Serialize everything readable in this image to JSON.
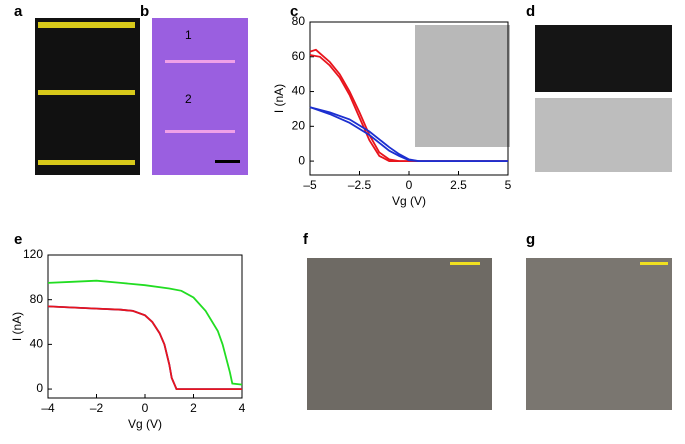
{
  "panel_labels": [
    "a",
    "b",
    "c",
    "d",
    "e",
    "f",
    "g"
  ],
  "image_labels": [
    "1",
    "2"
  ],
  "chart_data": [
    {
      "type": "line",
      "xlabel": "Vg (V)",
      "ylabel": "I (nA)",
      "xlim": [
        -5,
        5
      ],
      "xticks": [
        {
          "value": -5,
          "label": "–5"
        },
        {
          "value": -2.5,
          "label": "–2.5"
        },
        0,
        2.5,
        5
      ],
      "ylim": [
        -8,
        80
      ],
      "yticks": [
        0,
        20,
        40,
        60,
        80
      ],
      "series": [
        {
          "color": "#e8141c",
          "x": [
            -5,
            -4.5,
            -4,
            -3.5,
            -3,
            -2.5,
            -2,
            -1.5,
            -1,
            -0.5,
            0,
            2.5,
            5
          ],
          "values": [
            61,
            60,
            55,
            48,
            38,
            25,
            12,
            3,
            0,
            0,
            0,
            0,
            0
          ]
        },
        {
          "color": "#e8141c",
          "x": [
            -5,
            -4.7,
            -4.5,
            -4,
            -3.5,
            -3,
            -2.5,
            -2,
            -1.5,
            -1,
            -0.5,
            0,
            5
          ],
          "values": [
            63,
            64,
            62,
            57,
            50,
            40,
            28,
            15,
            5,
            1,
            0,
            0,
            0
          ]
        },
        {
          "color": "#1c2fd0",
          "x": [
            -5,
            -4,
            -3,
            -2,
            -1,
            -0.5,
            0,
            0.5,
            1,
            5
          ],
          "values": [
            31,
            28,
            24,
            17,
            8,
            4,
            1,
            0,
            0,
            0
          ]
        },
        {
          "color": "#1c2fd0",
          "x": [
            -5,
            -4,
            -3,
            -2,
            -1,
            -0.5,
            0,
            0.5,
            1,
            5
          ],
          "values": [
            31,
            27,
            22,
            15,
            6,
            3,
            0.5,
            0,
            0,
            0
          ]
        }
      ]
    },
    {
      "type": "line",
      "xlabel": "Vg (V)",
      "ylabel": "I (nA)",
      "xlim": [
        -4,
        4
      ],
      "xticks": [
        {
          "value": -4,
          "label": "–4"
        },
        {
          "value": -2,
          "label": "–2"
        },
        0,
        2,
        4
      ],
      "ylim": [
        -8,
        120
      ],
      "yticks": [
        0,
        40,
        80,
        120
      ],
      "series": [
        {
          "color": "#22dd22",
          "x": [
            -4,
            -3,
            -2,
            -1,
            0,
            1,
            1.5,
            2,
            2.5,
            3,
            3.2,
            3.5,
            3.6,
            4
          ],
          "values": [
            95,
            96,
            97,
            95,
            93,
            90,
            88,
            82,
            70,
            52,
            40,
            15,
            5,
            4
          ]
        },
        {
          "color": "#1c2fd0",
          "x": [
            -4,
            -3,
            -2,
            -1,
            -0.5,
            0,
            0.3,
            0.6,
            0.8,
            1,
            1.1,
            1.3,
            2,
            4
          ],
          "values": [
            74,
            73,
            72,
            71,
            70,
            66,
            60,
            50,
            40,
            22,
            10,
            0,
            0,
            0
          ]
        },
        {
          "color": "#e8141c",
          "x": [
            -4,
            -3,
            -2,
            -1,
            -0.5,
            0,
            0.3,
            0.6,
            0.8,
            1,
            1.1,
            1.3,
            2,
            4
          ],
          "values": [
            74,
            73,
            72,
            71,
            70,
            66,
            60,
            50,
            40,
            22,
            10,
            0,
            0,
            0
          ]
        }
      ]
    }
  ]
}
